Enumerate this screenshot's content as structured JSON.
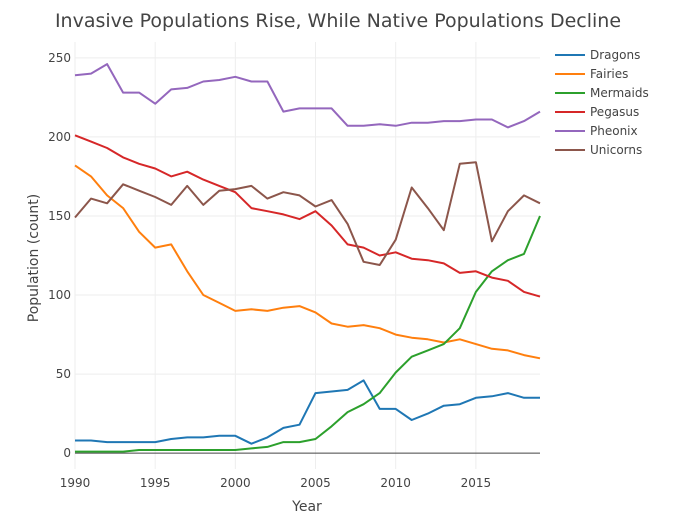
{
  "chart_data": {
    "type": "line",
    "title": "Invasive Populations Rise, While Native Populations Decline",
    "xlabel": "Year",
    "ylabel": "Population (count)",
    "xlim": [
      1990,
      2019
    ],
    "ylim": [
      -10,
      260
    ],
    "xticks": [
      1990,
      1995,
      2000,
      2005,
      2010,
      2015
    ],
    "yticks": [
      0,
      50,
      100,
      150,
      200,
      250
    ],
    "grid": true,
    "legend_position": "top-right",
    "x": [
      1990,
      1991,
      1992,
      1993,
      1994,
      1995,
      1996,
      1997,
      1998,
      1999,
      2000,
      2001,
      2002,
      2003,
      2004,
      2005,
      2006,
      2007,
      2008,
      2009,
      2010,
      2011,
      2012,
      2013,
      2014,
      2015,
      2016,
      2017,
      2018,
      2019
    ],
    "series": [
      {
        "name": "Dragons",
        "color": "#1f77b4",
        "values": [
          8,
          8,
          7,
          7,
          7,
          7,
          9,
          10,
          10,
          11,
          11,
          6,
          10,
          16,
          18,
          38,
          39,
          40,
          46,
          28,
          28,
          21,
          25,
          30,
          31,
          35,
          36,
          38,
          35,
          35
        ]
      },
      {
        "name": "Fairies",
        "color": "#ff7f0e",
        "values": [
          182,
          175,
          163,
          155,
          140,
          130,
          132,
          115,
          100,
          95,
          90,
          91,
          90,
          92,
          93,
          89,
          82,
          80,
          81,
          79,
          75,
          73,
          72,
          70,
          72,
          69,
          66,
          65,
          62,
          60
        ]
      },
      {
        "name": "Mermaids",
        "color": "#2ca02c",
        "values": [
          1,
          1,
          1,
          1,
          2,
          2,
          2,
          2,
          2,
          2,
          2,
          3,
          4,
          7,
          7,
          9,
          17,
          26,
          31,
          38,
          51,
          61,
          65,
          69,
          79,
          102,
          115,
          122,
          126,
          150
        ]
      },
      {
        "name": "Pegasus",
        "color": "#d62728",
        "values": [
          201,
          197,
          193,
          187,
          183,
          180,
          175,
          178,
          173,
          169,
          165,
          155,
          153,
          151,
          148,
          153,
          144,
          132,
          130,
          125,
          127,
          123,
          122,
          120,
          114,
          115,
          111,
          109,
          102,
          99
        ]
      },
      {
        "name": "Pheonix",
        "color": "#9467bd",
        "values": [
          239,
          240,
          246,
          228,
          228,
          221,
          230,
          231,
          235,
          236,
          238,
          235,
          235,
          216,
          218,
          218,
          218,
          207,
          207,
          208,
          207,
          209,
          209,
          210,
          210,
          211,
          211,
          206,
          210,
          216
        ]
      },
      {
        "name": "Unicorns",
        "color": "#8c564b",
        "values": [
          149,
          161,
          158,
          170,
          166,
          162,
          157,
          169,
          157,
          166,
          167,
          169,
          161,
          165,
          163,
          156,
          160,
          145,
          121,
          119,
          135,
          168,
          155,
          141,
          183,
          184,
          134,
          153,
          163,
          158
        ]
      }
    ]
  }
}
